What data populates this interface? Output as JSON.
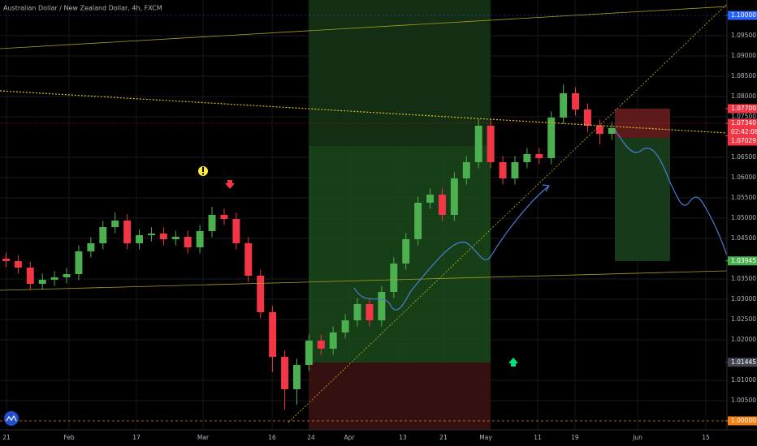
{
  "chart_data": {
    "type": "candlestick",
    "title": "Australian Dollar / New Zealand Dollar, 4h, FXCM",
    "open": [
      1.04,
      1.0394,
      1.0378,
      1.0338,
      1.0348,
      1.0354,
      1.0362,
      1.0418,
      1.0438,
      1.0478,
      1.0494,
      1.0438,
      1.0458,
      1.0462,
      1.0448,
      1.0454,
      1.0428,
      1.0468,
      1.0508,
      1.0498,
      1.0438,
      1.0358,
      1.0268,
      1.0158,
      1.0078,
      1.0138,
      1.0198,
      1.0178,
      1.0218,
      1.0248,
      1.0288,
      1.0248,
      1.0318,
      1.0388,
      1.0448,
      1.0538,
      1.0558,
      1.0508,
      1.0598,
      1.0638,
      1.0728,
      1.0638,
      1.0598,
      1.0638,
      1.0658,
      1.0648,
      1.0748,
      1.0808,
      1.0768,
      1.0728,
      1.0708
    ],
    "high": [
      1.0415,
      1.0409,
      1.0393,
      1.0363,
      1.0369,
      1.0377,
      1.0433,
      1.0453,
      1.0493,
      1.0514,
      1.0509,
      1.0473,
      1.0477,
      1.0477,
      1.0469,
      1.0469,
      1.0483,
      1.0528,
      1.0523,
      1.0513,
      1.0453,
      1.0373,
      1.0283,
      1.0173,
      1.0153,
      1.0213,
      1.0213,
      1.0233,
      1.0263,
      1.0303,
      1.0303,
      1.0333,
      1.0403,
      1.0463,
      1.0553,
      1.0573,
      1.0573,
      1.0613,
      1.0653,
      1.0744,
      1.0743,
      1.0653,
      1.0653,
      1.0673,
      1.0673,
      1.0763,
      1.083,
      1.0823,
      1.0783,
      1.0743,
      1.0737
    ],
    "low": [
      1.0379,
      1.0363,
      1.0323,
      1.0323,
      1.0333,
      1.0339,
      1.0347,
      1.0403,
      1.0423,
      1.0463,
      1.0423,
      1.0423,
      1.0443,
      1.0433,
      1.0433,
      1.0413,
      1.0413,
      1.0453,
      1.0483,
      1.0423,
      1.0343,
      1.0253,
      1.012,
      1.0028,
      1.004,
      1.0123,
      1.0163,
      1.0163,
      1.0203,
      1.0233,
      1.0233,
      1.0233,
      1.0303,
      1.0373,
      1.0433,
      1.0523,
      1.0493,
      1.0493,
      1.0583,
      1.0623,
      1.0623,
      1.0583,
      1.0583,
      1.0623,
      1.0633,
      1.0633,
      1.0733,
      1.0753,
      1.0713,
      1.0682,
      1.0693
    ],
    "close": [
      1.0394,
      1.0378,
      1.0338,
      1.0348,
      1.0354,
      1.0362,
      1.0418,
      1.0438,
      1.0478,
      1.0494,
      1.0438,
      1.0458,
      1.0462,
      1.0448,
      1.0454,
      1.0428,
      1.0468,
      1.0508,
      1.0498,
      1.0438,
      1.0358,
      1.0268,
      1.0158,
      1.0078,
      1.0138,
      1.0198,
      1.0178,
      1.0218,
      1.0248,
      1.0288,
      1.0248,
      1.0318,
      1.0388,
      1.0448,
      1.0538,
      1.0558,
      1.0508,
      1.0598,
      1.0638,
      1.0728,
      1.0638,
      1.0598,
      1.0638,
      1.0658,
      1.0648,
      1.0748,
      1.0808,
      1.0768,
      1.0728,
      1.0708,
      1.0722
    ],
    "up_color": "#4caf50",
    "down_color": "#f23645",
    "xlim": [
      0,
      60
    ],
    "ylim": [
      0.9978,
      1.1038
    ],
    "xticks": [
      {
        "value": 0.54,
        "label": "21"
      },
      {
        "value": 5.7,
        "label": "Feb"
      },
      {
        "value": 11.26,
        "label": "17"
      },
      {
        "value": 16.76,
        "label": "Mar"
      },
      {
        "value": 22.46,
        "label": "16"
      },
      {
        "value": 25.68,
        "label": "24"
      },
      {
        "value": 28.83,
        "label": "Apr"
      },
      {
        "value": 33.25,
        "label": "13"
      },
      {
        "value": 36.6,
        "label": "21"
      },
      {
        "value": 40.09,
        "label": "May"
      },
      {
        "value": 44.38,
        "label": "11"
      },
      {
        "value": 47.46,
        "label": "19"
      },
      {
        "value": 52.63,
        "label": "Jun"
      },
      {
        "value": 58.26,
        "label": "15"
      }
    ],
    "yticks": [
      {
        "value": 1.005,
        "label": "1.00500"
      },
      {
        "value": 1.01,
        "label": "1.01000"
      },
      {
        "value": 1.02,
        "label": "1.02000"
      },
      {
        "value": 1.025,
        "label": "1.02500"
      },
      {
        "value": 1.03,
        "label": "1.03000"
      },
      {
        "value": 1.035,
        "label": "1.03500"
      },
      {
        "value": 1.045,
        "label": "1.04500"
      },
      {
        "value": 1.05,
        "label": "1.05000"
      },
      {
        "value": 1.055,
        "label": "1.05500"
      },
      {
        "value": 1.06,
        "label": "1.06000"
      },
      {
        "value": 1.065,
        "label": "1.06500"
      },
      {
        "value": 1.075,
        "label": "1.07500"
      },
      {
        "value": 1.08,
        "label": "1.08000"
      },
      {
        "value": 1.085,
        "label": "1.08500"
      },
      {
        "value": 1.09,
        "label": "1.09000"
      },
      {
        "value": 1.095,
        "label": "1.09500"
      }
    ],
    "grid": true,
    "price_labels": [
      {
        "value": 1.1,
        "label": "1.10000",
        "color": "#2962ff"
      },
      {
        "value": 1.077,
        "label": "1.07700",
        "color": "#f23645"
      },
      {
        "value": 1.0734,
        "label": "1.07340",
        "color": "#f23645"
      },
      {
        "value": 1.07029,
        "label": "1.07029",
        "color": "#f23645"
      },
      {
        "value": 1.03945,
        "label": "1.03945",
        "color": "#4caf50"
      },
      {
        "value": 1.01445,
        "label": "1.01445",
        "color": "#434651"
      },
      {
        "value": 1.0,
        "label": "1.00000",
        "color": "#f57f17"
      }
    ],
    "countdown": "02:42:08"
  }
}
